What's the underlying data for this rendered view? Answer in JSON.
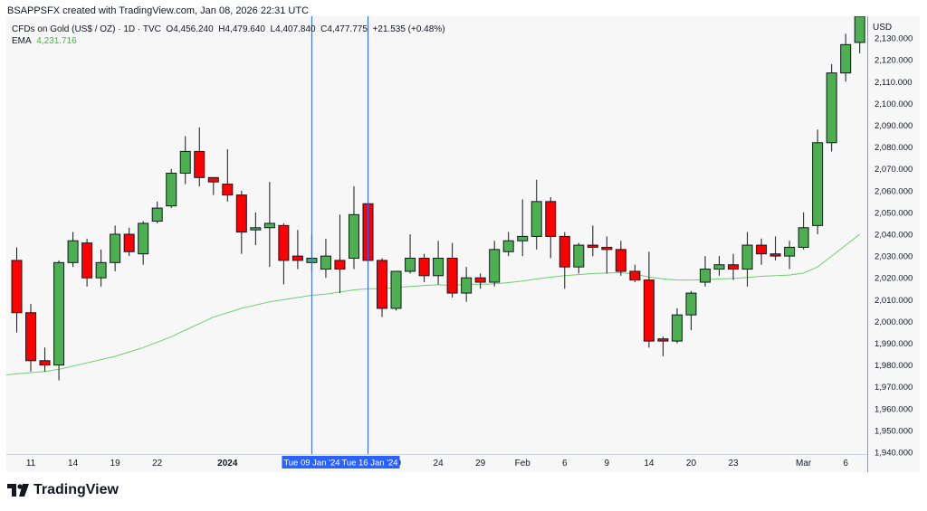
{
  "header": {
    "credit": "BSAPPSFX created with TradingView.com, Jan 08, 2026 22:31 UTC"
  },
  "legend": {
    "symbol": "CFDs on Gold (US$ / OZ) · 1D · TVC",
    "o_label": "O",
    "o": "4,456.240",
    "h_label": "H",
    "h": "4,479.640",
    "l_label": "L",
    "l": "4,407.840",
    "c_label": "C",
    "c": "4,477.775",
    "change": "+21.535 (+0.48%)",
    "ema_label": "EMA",
    "ema_value": "4,231.716"
  },
  "axis": {
    "unit": "USD"
  },
  "brand": {
    "name": "TradingView"
  },
  "colors": {
    "up": "#4caf50",
    "down": "#ff0000",
    "ema": "#6fcf6f",
    "crosshair": "#2962ff"
  },
  "chart_data": {
    "type": "candlestick",
    "ylim": [
      1940,
      2140
    ],
    "yticks": [
      1940,
      1950,
      1960,
      1970,
      1980,
      1990,
      2000,
      2010,
      2020,
      2030,
      2040,
      2050,
      2060,
      2070,
      2080,
      2090,
      2100,
      2110,
      2120,
      2130
    ],
    "ytick_labels": [
      "1,940.000",
      "1,950.000",
      "1,960.000",
      "1,970.000",
      "1,980.000",
      "1,990.000",
      "2,000.000",
      "2,010.000",
      "2,020.000",
      "2,030.000",
      "2,040.000",
      "2,050.000",
      "2,060.000",
      "2,070.000",
      "2,080.000",
      "2,090.000",
      "2,100.000",
      "2,110.000",
      "2,120.000",
      "2,130.000"
    ],
    "xticks": [
      {
        "i": 1,
        "label": "11"
      },
      {
        "i": 4,
        "label": "14"
      },
      {
        "i": 7,
        "label": "19"
      },
      {
        "i": 10,
        "label": "22"
      },
      {
        "i": 15,
        "label": "2024",
        "bold": true
      },
      {
        "i": 27,
        "label": "19"
      },
      {
        "i": 30,
        "label": "24"
      },
      {
        "i": 33,
        "label": "29"
      },
      {
        "i": 36,
        "label": "Feb"
      },
      {
        "i": 39,
        "label": "6"
      },
      {
        "i": 42,
        "label": "9"
      },
      {
        "i": 45,
        "label": "14"
      },
      {
        "i": 48,
        "label": "20"
      },
      {
        "i": 51,
        "label": "23"
      },
      {
        "i": 56,
        "label": "Mar"
      },
      {
        "i": 59,
        "label": "6"
      }
    ],
    "crosshairs": [
      {
        "i": 21,
        "label": "Tue 09 Jan '24"
      },
      {
        "i": 25,
        "label": "Tue 16 Jan '24"
      }
    ],
    "candles": [
      {
        "o": 2028,
        "h": 2034,
        "l": 1995,
        "c": 2004
      },
      {
        "o": 2004,
        "h": 2008,
        "l": 1977,
        "c": 1982
      },
      {
        "o": 1982,
        "h": 1988,
        "l": 1977,
        "c": 1980
      },
      {
        "o": 1980,
        "h": 2028,
        "l": 1973,
        "c": 2027
      },
      {
        "o": 2027,
        "h": 2041,
        "l": 2025,
        "c": 2037
      },
      {
        "o": 2036,
        "h": 2038,
        "l": 2016,
        "c": 2020
      },
      {
        "o": 2020,
        "h": 2033,
        "l": 2016,
        "c": 2027
      },
      {
        "o": 2027,
        "h": 2044,
        "l": 2023,
        "c": 2040
      },
      {
        "o": 2040,
        "h": 2043,
        "l": 2030,
        "c": 2032
      },
      {
        "o": 2031,
        "h": 2046,
        "l": 2026,
        "c": 2045
      },
      {
        "o": 2046,
        "h": 2055,
        "l": 2045,
        "c": 2052
      },
      {
        "o": 2053,
        "h": 2070,
        "l": 2052,
        "c": 2068
      },
      {
        "o": 2068,
        "h": 2085,
        "l": 2063,
        "c": 2078
      },
      {
        "o": 2078,
        "h": 2089,
        "l": 2062,
        "c": 2066
      },
      {
        "o": 2066,
        "h": 2066,
        "l": 2058,
        "c": 2064
      },
      {
        "o": 2063,
        "h": 2079,
        "l": 2055,
        "c": 2058
      },
      {
        "o": 2058,
        "h": 2060,
        "l": 2031,
        "c": 2041
      },
      {
        "o": 2042,
        "h": 2050,
        "l": 2035,
        "c": 2043
      },
      {
        "o": 2043,
        "h": 2064,
        "l": 2025,
        "c": 2045
      },
      {
        "o": 2044,
        "h": 2045,
        "l": 2017,
        "c": 2028
      },
      {
        "o": 2030,
        "h": 2042,
        "l": 2024,
        "c": 2028
      },
      {
        "o": 2027,
        "h": 2040,
        "l": 2023,
        "c": 2029
      },
      {
        "o": 2024,
        "h": 2038,
        "l": 2020,
        "c": 2030
      },
      {
        "o": 2028,
        "h": 2049,
        "l": 2013,
        "c": 2024
      },
      {
        "o": 2029,
        "h": 2062,
        "l": 2024,
        "c": 2049
      },
      {
        "o": 2054,
        "h": 2055,
        "l": 2028,
        "c": 2028
      },
      {
        "o": 2028,
        "h": 2029,
        "l": 2002,
        "c": 2006
      },
      {
        "o": 2006,
        "h": 2023,
        "l": 2005,
        "c": 2023
      },
      {
        "o": 2023,
        "h": 2040,
        "l": 2022,
        "c": 2029
      },
      {
        "o": 2029,
        "h": 2031,
        "l": 2018,
        "c": 2021
      },
      {
        "o": 2021,
        "h": 2037,
        "l": 2017,
        "c": 2029
      },
      {
        "o": 2029,
        "h": 2036,
        "l": 2011,
        "c": 2013
      },
      {
        "o": 2013,
        "h": 2025,
        "l": 2009,
        "c": 2020
      },
      {
        "o": 2020,
        "h": 2022,
        "l": 2015,
        "c": 2018
      },
      {
        "o": 2018,
        "h": 2037,
        "l": 2016,
        "c": 2033
      },
      {
        "o": 2032,
        "h": 2041,
        "l": 2030,
        "c": 2037
      },
      {
        "o": 2037,
        "h": 2056,
        "l": 2030,
        "c": 2039
      },
      {
        "o": 2039,
        "h": 2065,
        "l": 2033,
        "c": 2055
      },
      {
        "o": 2055,
        "h": 2057,
        "l": 2029,
        "c": 2039
      },
      {
        "o": 2039,
        "h": 2041,
        "l": 2015,
        "c": 2025
      },
      {
        "o": 2025,
        "h": 2036,
        "l": 2022,
        "c": 2035
      },
      {
        "o": 2035,
        "h": 2044,
        "l": 2030,
        "c": 2034
      },
      {
        "o": 2034,
        "h": 2039,
        "l": 2022,
        "c": 2033
      },
      {
        "o": 2033,
        "h": 2037,
        "l": 2021,
        "c": 2023
      },
      {
        "o": 2023,
        "h": 2026,
        "l": 2018,
        "c": 2019
      },
      {
        "o": 2019,
        "h": 2032,
        "l": 1988,
        "c": 1991
      },
      {
        "o": 1992,
        "h": 1993,
        "l": 1984,
        "c": 1991
      },
      {
        "o": 1991,
        "h": 2006,
        "l": 1990,
        "c": 2003
      },
      {
        "o": 2003,
        "h": 2014,
        "l": 1996,
        "c": 2013
      },
      {
        "o": 2018,
        "h": 2030,
        "l": 2016,
        "c": 2024
      },
      {
        "o": 2024,
        "h": 2030,
        "l": 2021,
        "c": 2026
      },
      {
        "o": 2026,
        "h": 2031,
        "l": 2019,
        "c": 2024
      },
      {
        "o": 2024,
        "h": 2041,
        "l": 2016,
        "c": 2035
      },
      {
        "o": 2035,
        "h": 2038,
        "l": 2026,
        "c": 2031
      },
      {
        "o": 2031,
        "h": 2039,
        "l": 2028,
        "c": 2030
      },
      {
        "o": 2030,
        "h": 2037,
        "l": 2024,
        "c": 2034
      },
      {
        "o": 2034,
        "h": 2050,
        "l": 2033,
        "c": 2043
      },
      {
        "o": 2044,
        "h": 2088,
        "l": 2040,
        "c": 2082
      },
      {
        "o": 2082,
        "h": 2118,
        "l": 2078,
        "c": 2114
      },
      {
        "o": 2114,
        "h": 2132,
        "l": 2110,
        "c": 2127
      },
      {
        "o": 2128,
        "h": 2140,
        "l": 2123,
        "c": 2140
      }
    ],
    "ema": [
      1976,
      1976.5,
      1977,
      1978,
      1979.5,
      1981,
      1982.5,
      1984,
      1986,
      1988,
      1990.5,
      1993,
      1996,
      1999,
      2002,
      2004,
      2006,
      2007.5,
      2009,
      2010,
      2011,
      2012,
      2012.5,
      2013.5,
      2014.5,
      2015,
      2015,
      2015.5,
      2016,
      2016.5,
      2016.8,
      2016.5,
      2017,
      2017,
      2017.2,
      2017.8,
      2018.5,
      2019.5,
      2020.3,
      2021,
      2021.5,
      2022,
      2022.2,
      2022.4,
      2021.7,
      2020.4,
      2019.5,
      2019,
      2019,
      2019.2,
      2019.5,
      2019.7,
      2020.2,
      2020.7,
      2021,
      2021.3,
      2022.2,
      2025,
      2030,
      2035,
      2040
    ]
  }
}
